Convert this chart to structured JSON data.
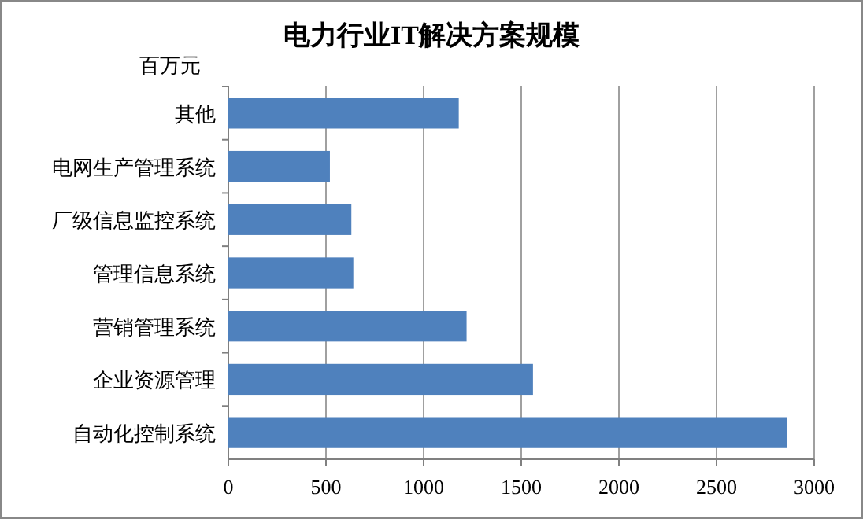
{
  "chart_data": {
    "type": "bar",
    "orientation": "horizontal",
    "title": "电力行业IT解决方案规模",
    "xlabel": "百万元",
    "categories": [
      "其他",
      "电网生产管理系统",
      "厂级信息监控系统",
      "管理信息系统",
      "营销管理系统",
      "企业资源管理",
      "自动化控制系统"
    ],
    "values": [
      1180,
      520,
      630,
      640,
      1220,
      1560,
      2860
    ],
    "color": "#4f81bd",
    "xlim": [
      0,
      3000
    ],
    "xticks": [
      0,
      500,
      1000,
      1500,
      2000,
      2500,
      3000
    ],
    "grid": "x"
  }
}
